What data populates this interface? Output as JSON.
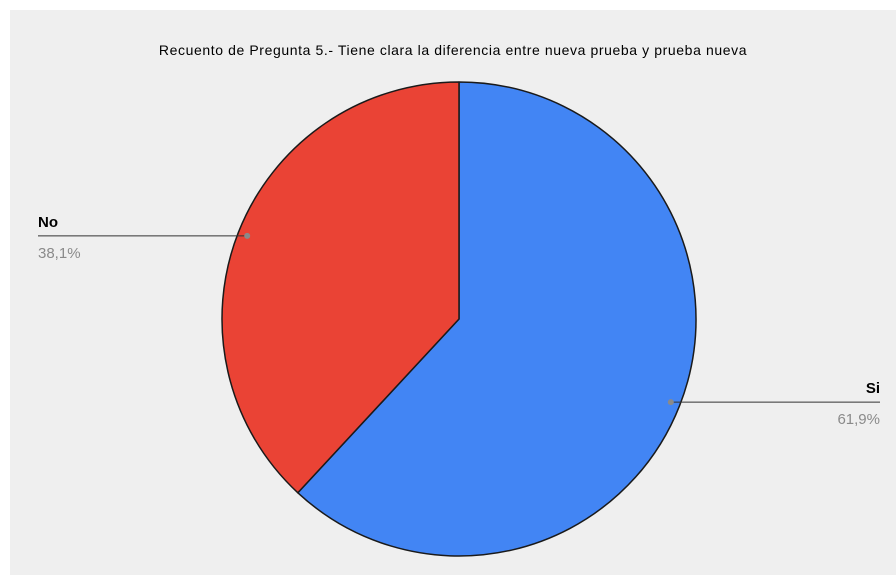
{
  "chart_data": {
    "type": "pie",
    "title": "Recuento de Pregunta 5.- Tiene clara la diferencia entre nueva prueba y prueba nueva",
    "slices": [
      {
        "label": "Si",
        "value": 61.9,
        "value_label": "61,9%",
        "color": "#4285f4"
      },
      {
        "label": "No",
        "value": 38.1,
        "value_label": "38,1%",
        "color": "#ea4335"
      }
    ],
    "start_angle": "12 o'clock",
    "direction": "clockwise",
    "legend": "none",
    "labels": "outside with leader lines"
  }
}
